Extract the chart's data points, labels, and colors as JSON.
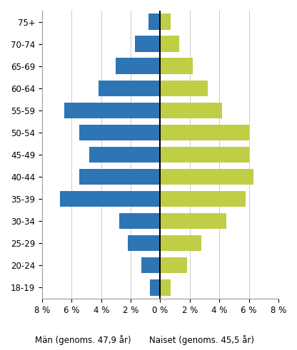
{
  "age_groups": [
    "18-19",
    "20-24",
    "25-29",
    "30-34",
    "35-39",
    "40-44",
    "45-49",
    "50-54",
    "55-59",
    "60-64",
    "65-69",
    "70-74",
    "75+"
  ],
  "men_values": [
    0.7,
    1.3,
    2.2,
    2.8,
    6.8,
    5.5,
    4.8,
    5.5,
    6.5,
    4.2,
    3.0,
    1.7,
    0.8
  ],
  "women_values": [
    0.7,
    1.8,
    2.8,
    4.5,
    5.8,
    6.3,
    6.0,
    6.0,
    4.2,
    3.2,
    2.2,
    1.3,
    0.7
  ],
  "men_color": "#2E75B6",
  "women_color": "#BFCE45",
  "xlim": 8,
  "xlabel_left": "Män (genoms. 47,9 år)",
  "xlabel_right": "Naiset (genoms. 45,5 år)",
  "background_color": "#FFFFFF",
  "grid_color": "#CCCCCC",
  "tick_label_fontsize": 8.5,
  "xlabel_fontsize": 8.5
}
